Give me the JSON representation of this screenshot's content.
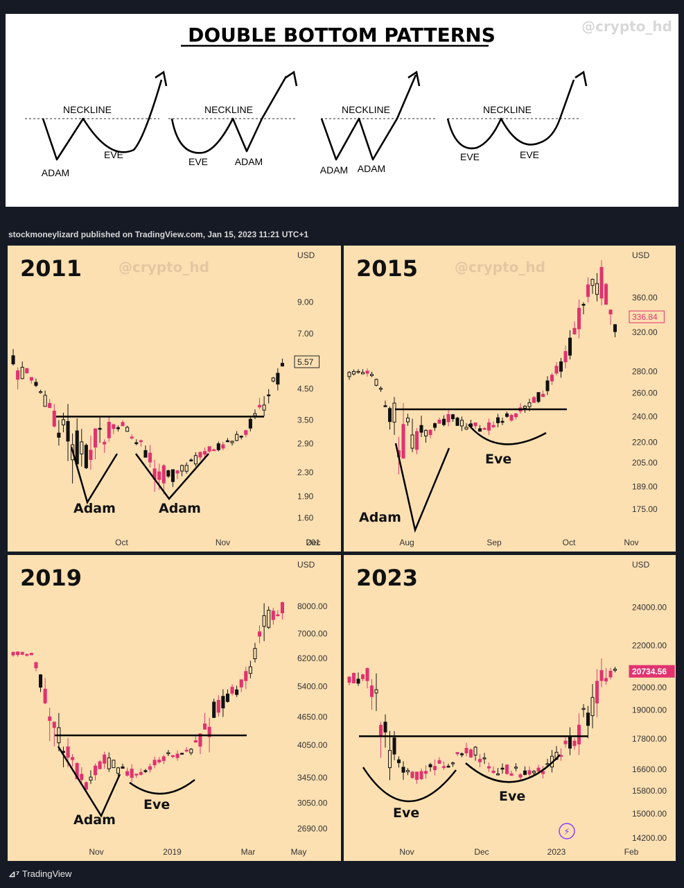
{
  "header": {
    "title": "DOUBLE BOTTOM PATTERNS",
    "watermark": "@crypto_hd",
    "patterns": [
      {
        "neckline": "NECKLINE",
        "first": "ADAM",
        "second": "EVE"
      },
      {
        "neckline": "NECKLINE",
        "first": "EVE",
        "second": "ADAM"
      },
      {
        "neckline": "NECKLINE",
        "first": "ADAM",
        "second": "ADAM"
      },
      {
        "neckline": "NECKLINE",
        "first": "EVE",
        "second": "EVE"
      }
    ]
  },
  "publish_line": "stockmoneylizard published on TradingView.com, Jan 15, 2023 11:21 UTC+1",
  "footer": {
    "brand": "TradingView"
  },
  "colors": {
    "up": "#111111",
    "down": "#e0336f",
    "panel_bg": "#fce0b2",
    "page_bg": "#161a25"
  },
  "chart_data": [
    {
      "type": "candlestick",
      "title": "2011",
      "watermark": "@crypto_hd",
      "currency": "USD",
      "y_scale": "log",
      "ylim": [
        1.45,
        12.0
      ],
      "y_ticks": [
        "9.00",
        "7.00",
        "5.57",
        "4.50",
        "3.50",
        "2.90",
        "2.30",
        "1.90",
        "1.60"
      ],
      "y_tick_values": [
        9.0,
        7.0,
        5.57,
        4.5,
        3.5,
        2.9,
        2.3,
        1.9,
        1.6
      ],
      "last_price_label": "5.57",
      "x_ticks": [
        [
          "Oct",
          0.3
        ],
        [
          "Nov",
          0.7
        ],
        [
          "Dec",
          1.2
        ],
        [
          "201",
          1.5
        ]
      ],
      "x_tick_labels": [
        "Oct",
        "Nov",
        "Dec",
        "201"
      ],
      "neckline": 3.6,
      "annotations": [
        "Adam",
        "Adam"
      ],
      "ohlc_samples": [
        [
          6.2,
          4.6
        ],
        [
          5.1,
          4.8
        ],
        [
          4.1,
          3.6
        ],
        [
          3.9,
          2.1
        ],
        [
          3.1,
          2.2
        ],
        [
          3.7,
          2.7
        ],
        [
          3.6,
          3.3
        ],
        [
          3.1,
          2.8
        ],
        [
          2.6,
          2.0
        ],
        [
          2.4,
          2.1
        ],
        [
          2.6,
          2.4
        ],
        [
          2.9,
          2.7
        ],
        [
          3.0,
          2.8
        ],
        [
          3.3,
          3.1
        ],
        [
          4.5,
          3.7
        ],
        [
          5.6,
          4.9
        ]
      ]
    },
    {
      "type": "candlestick",
      "title": "2015",
      "watermark": "@crypto_hd",
      "currency": "USD",
      "y_scale": "log",
      "ylim": [
        163,
        430
      ],
      "y_ticks": [
        "360.00",
        "336.84",
        "320.00",
        "280.00",
        "260.00",
        "240.00",
        "220.00",
        "205.00",
        "189.00",
        "175.00"
      ],
      "y_tick_values": [
        360,
        336.84,
        320,
        280,
        260,
        240,
        220,
        205,
        189,
        175
      ],
      "last_price_label": "336.84",
      "x_ticks": [
        [
          "Aug",
          0.1
        ],
        [
          "Sep",
          0.45
        ],
        [
          "Oct",
          0.75
        ],
        [
          "Nov",
          1.0
        ]
      ],
      "x_tick_labels": [
        "Aug",
        "Sep",
        "Oct",
        "Nov"
      ],
      "neckline": 246,
      "annotations": [
        "Adam",
        "Eve"
      ],
      "ohlc_samples": [
        [
          280,
          276
        ],
        [
          283,
          278
        ],
        [
          265,
          258
        ],
        [
          255,
          200
        ],
        [
          238,
          210
        ],
        [
          232,
          228
        ],
        [
          243,
          236
        ],
        [
          236,
          226
        ],
        [
          234,
          228
        ],
        [
          240,
          232
        ],
        [
          244,
          238
        ],
        [
          256,
          246
        ],
        [
          275,
          262
        ],
        [
          300,
          280
        ],
        [
          360,
          330
        ],
        [
          420,
          360
        ],
        [
          336.84,
          320
        ]
      ]
    },
    {
      "type": "candlestick",
      "title": "2019",
      "currency": "USD",
      "y_scale": "log",
      "ylim": [
        2550,
        9300
      ],
      "y_ticks": [
        "8000.00",
        "7000.00",
        "6200.00",
        "5400.00",
        "4650.00",
        "4050.00",
        "3450.00",
        "3050.00",
        "2690.00"
      ],
      "y_tick_values": [
        8000,
        7000,
        6200,
        5400,
        4650,
        4050,
        3450,
        3050,
        2690
      ],
      "x_ticks": [
        [
          "Nov",
          0.2
        ],
        [
          "2019",
          0.5
        ],
        [
          "Mar",
          0.8
        ],
        [
          "May",
          1.0
        ]
      ],
      "x_tick_labels": [
        "Nov",
        "2019",
        "Mar",
        "May"
      ],
      "neckline": 4250,
      "annotations": [
        "Adam",
        "Eve"
      ],
      "ohlc_samples": [
        [
          6400,
          6300
        ],
        [
          6350,
          6300
        ],
        [
          5500,
          4300
        ],
        [
          4200,
          3600
        ],
        [
          3500,
          3200
        ],
        [
          3900,
          3600
        ],
        [
          3700,
          3500
        ],
        [
          3600,
          3400
        ],
        [
          3800,
          3700
        ],
        [
          3950,
          3800
        ],
        [
          4000,
          3900
        ],
        [
          5100,
          4100
        ],
        [
          5300,
          5000
        ],
        [
          6000,
          5300
        ],
        [
          8000,
          6500
        ],
        [
          8200,
          7600
        ]
      ]
    },
    {
      "type": "candlestick",
      "title": "2023",
      "currency": "USD",
      "y_scale": "log",
      "ylim": [
        14150,
        26000
      ],
      "y_ticks": [
        "24000.00",
        "22000.00",
        "20734.56",
        "20000.00",
        "19000.00",
        "17800.00",
        "16600.00",
        "15800.00",
        "15000.00",
        "14200.00"
      ],
      "y_tick_values": [
        24000,
        22000,
        20734.56,
        20000,
        19000,
        17800,
        16600,
        15800,
        15000,
        14200
      ],
      "last_price_label": "20734.56",
      "x_ticks": [
        [
          "Nov",
          0.1
        ],
        [
          "Dec",
          0.4
        ],
        [
          "2023",
          0.7
        ],
        [
          "Feb",
          1.0
        ]
      ],
      "x_tick_labels": [
        "Nov",
        "Dec",
        "2023",
        "Feb"
      ],
      "neckline": 17900,
      "annotations": [
        "Eve",
        "Eve"
      ],
      "ohlc_samples": [
        [
          20500,
          20100
        ],
        [
          21000,
          20300
        ],
        [
          19500,
          16500
        ],
        [
          16800,
          16300
        ],
        [
          16500,
          16200
        ],
        [
          16900,
          16400
        ],
        [
          17200,
          16900
        ],
        [
          17500,
          17100
        ],
        [
          16800,
          16500
        ],
        [
          16700,
          16400
        ],
        [
          16500,
          16300
        ],
        [
          16800,
          16500
        ],
        [
          17400,
          16900
        ],
        [
          19000,
          17500
        ],
        [
          21000,
          19000
        ],
        [
          20734.56,
          20600
        ]
      ]
    }
  ]
}
